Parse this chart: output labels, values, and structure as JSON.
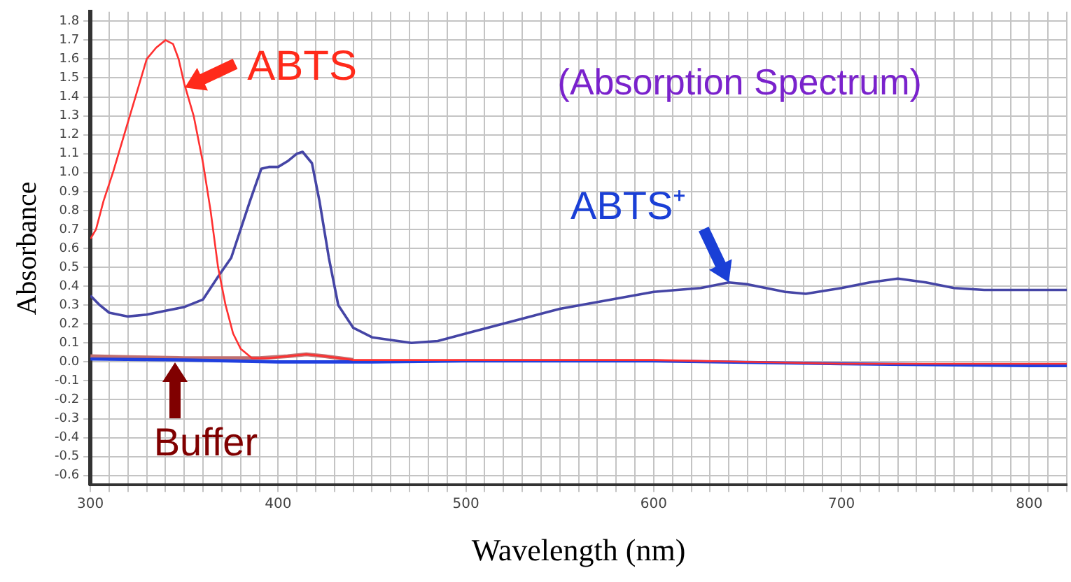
{
  "chart_data": {
    "type": "line",
    "title": "(Absorption Spectrum)",
    "xlabel": "Wavelength (nm)",
    "ylabel": "Absorbance",
    "xlim": [
      300,
      820
    ],
    "ylim": [
      -0.65,
      1.85
    ],
    "xticks": [
      300,
      {
        "value": 310,
        "label": null
      },
      {
        "value": 320,
        "label": null
      },
      {
        "value": 330,
        "label": null
      },
      {
        "value": 340,
        "label": null
      },
      {
        "value": 350,
        "label": null
      },
      {
        "value": 360,
        "label": null
      },
      {
        "value": 370,
        "label": null
      },
      {
        "value": 380,
        "label": null
      },
      {
        "value": 390,
        "label": null
      },
      400,
      {
        "value": 410,
        "label": null
      },
      {
        "value": 420,
        "label": null
      },
      {
        "value": 430,
        "label": null
      },
      {
        "value": 440,
        "label": null
      },
      {
        "value": 450,
        "label": null
      },
      {
        "value": 460,
        "label": null
      },
      {
        "value": 470,
        "label": null
      },
      {
        "value": 480,
        "label": null
      },
      {
        "value": 490,
        "label": null
      },
      500,
      {
        "value": 510,
        "label": null
      },
      {
        "value": 520,
        "label": null
      },
      {
        "value": 530,
        "label": null
      },
      {
        "value": 540,
        "label": null
      },
      {
        "value": 550,
        "label": null
      },
      {
        "value": 560,
        "label": null
      },
      {
        "value": 570,
        "label": null
      },
      {
        "value": 580,
        "label": null
      },
      {
        "value": 590,
        "label": null
      },
      600,
      {
        "value": 610,
        "label": null
      },
      {
        "value": 620,
        "label": null
      },
      {
        "value": 630,
        "label": null
      },
      {
        "value": 640,
        "label": null
      },
      {
        "value": 650,
        "label": null
      },
      {
        "value": 660,
        "label": null
      },
      {
        "value": 670,
        "label": null
      },
      {
        "value": 680,
        "label": null
      },
      {
        "value": 690,
        "label": null
      },
      700,
      {
        "value": 710,
        "label": null
      },
      {
        "value": 720,
        "label": null
      },
      {
        "value": 730,
        "label": null
      },
      {
        "value": 740,
        "label": null
      },
      {
        "value": 750,
        "label": null
      },
      {
        "value": 760,
        "label": null
      },
      {
        "value": 770,
        "label": null
      },
      {
        "value": 780,
        "label": null
      },
      {
        "value": 790,
        "label": null
      },
      800,
      {
        "value": 810,
        "label": null
      },
      {
        "value": 820,
        "label": null
      }
    ],
    "yticks": [
      -0.6,
      -0.5,
      -0.4,
      -0.3,
      -0.2,
      -0.1,
      {
        "value": 0,
        "label": "0.0"
      },
      0.1,
      0.2,
      0.3,
      0.4,
      0.5,
      0.6,
      0.7,
      0.8,
      0.9,
      {
        "value": 1,
        "label": "1.0"
      },
      1.1,
      1.2,
      1.3,
      1.4,
      1.5,
      1.6,
      1.7,
      1.8
    ],
    "grid": true,
    "legend": false,
    "marker": "none",
    "line_style": "solid",
    "series": [
      {
        "color": "#ff3030",
        "x": [
          300,
          303,
          307,
          312,
          318,
          324,
          330,
          335,
          340,
          344,
          347,
          350,
          355,
          360,
          364,
          368,
          372,
          376,
          380,
          386,
          395,
          405,
          415,
          425,
          440,
          500,
          600,
          700,
          820
        ],
        "values": [
          0.65,
          0.7,
          0.85,
          1.0,
          1.2,
          1.4,
          1.6,
          1.66,
          1.7,
          1.68,
          1.6,
          1.47,
          1.3,
          1.05,
          0.8,
          0.5,
          0.3,
          0.15,
          0.07,
          0.02,
          0.02,
          0.03,
          0.04,
          0.03,
          0.01,
          0.01,
          0.01,
          -0.01,
          -0.01
        ]
      },
      {
        "color": "#4545a5",
        "x": [
          300,
          305,
          310,
          320,
          330,
          340,
          350,
          360,
          368,
          375,
          380,
          385,
          391,
          395,
          400,
          405,
          410,
          413,
          418,
          422,
          427,
          432,
          440,
          450,
          471,
          485,
          500,
          550,
          600,
          625,
          640,
          650,
          670,
          681,
          700,
          715,
          730,
          745,
          760,
          776,
          800,
          820
        ],
        "values": [
          0.35,
          0.3,
          0.26,
          0.24,
          0.25,
          0.27,
          0.29,
          0.33,
          0.45,
          0.55,
          0.7,
          0.85,
          1.02,
          1.03,
          1.03,
          1.06,
          1.1,
          1.11,
          1.05,
          0.85,
          0.55,
          0.3,
          0.18,
          0.13,
          0.1,
          0.11,
          0.15,
          0.28,
          0.37,
          0.39,
          0.42,
          0.41,
          0.37,
          0.36,
          0.39,
          0.42,
          0.44,
          0.42,
          0.39,
          0.38,
          0.38,
          0.38
        ]
      },
      {
        "color": "#2040e0",
        "x": [
          300,
          350,
          400,
          450,
          500,
          600,
          700,
          800,
          820
        ],
        "values": [
          0.015,
          0.01,
          0.0,
          0.0,
          0.005,
          0.005,
          -0.01,
          -0.02,
          -0.02
        ]
      },
      {
        "color": "#c07070",
        "x": [
          300,
          320,
          350,
          390,
          405,
          415,
          425,
          440
        ],
        "values": [
          0.03,
          0.025,
          0.02,
          0.02,
          0.03,
          0.04,
          0.03,
          0.01
        ]
      }
    ],
    "annotations": [
      {
        "text": "ABTS",
        "x": 350,
        "y": 1.45
      },
      {
        "text": "ABTS⁺",
        "x": 640,
        "y": 0.42
      },
      {
        "text": "Buffer",
        "x": 345,
        "y": 0
      }
    ]
  }
}
